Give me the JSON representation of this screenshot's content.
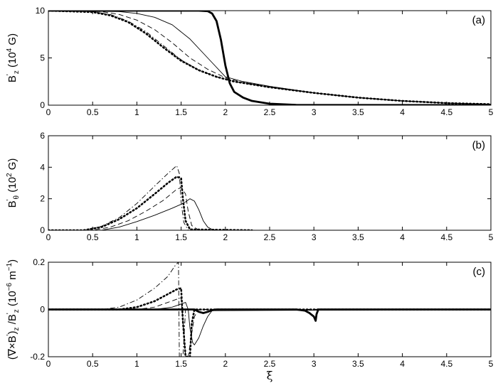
{
  "chart_data": [
    {
      "type": "line",
      "panel": "(a)",
      "ylabel_parts": [
        "B",
        "'",
        "z",
        " (10",
        "4",
        " G)"
      ],
      "xlim": [
        0,
        5
      ],
      "ylim": [
        0,
        10
      ],
      "xticks": [
        "0",
        "0.5",
        "1",
        "1.5",
        "2",
        "2.5",
        "3",
        "3.5",
        "4",
        "4.5",
        "5"
      ],
      "yticks": [
        "0",
        "5",
        "10"
      ],
      "grid": false,
      "series": [
        {
          "style": "thick-solid",
          "x": [
            0,
            1.5,
            1.7,
            1.8,
            1.85,
            1.9,
            1.95,
            2.0,
            2.05,
            2.1,
            2.2,
            2.3,
            2.5,
            2.8,
            5
          ],
          "y": [
            10,
            10,
            10,
            9.95,
            9.7,
            8.9,
            6.9,
            4.2,
            2.3,
            1.4,
            0.8,
            0.45,
            0.15,
            0.03,
            0
          ]
        },
        {
          "style": "thin-solid",
          "x": [
            0,
            0.8,
            1.0,
            1.2,
            1.4,
            1.6,
            1.8,
            2.0,
            2.2,
            2.5,
            3,
            3.5,
            4,
            4.5,
            5
          ],
          "y": [
            10,
            9.9,
            9.7,
            9.3,
            8.5,
            7.0,
            5.0,
            3.0,
            2.5,
            2.0,
            1.3,
            0.8,
            0.45,
            0.22,
            0.1
          ]
        },
        {
          "style": "dashed",
          "x": [
            0,
            0.6,
            0.8,
            1.0,
            1.2,
            1.4,
            1.6,
            1.8,
            2.0,
            2.2,
            2.5,
            3,
            3.5,
            4,
            4.5,
            5
          ],
          "y": [
            10,
            9.9,
            9.6,
            9.0,
            8.0,
            6.6,
            5.0,
            3.8,
            2.9,
            2.4,
            1.9,
            1.3,
            0.8,
            0.45,
            0.22,
            0.1
          ]
        },
        {
          "style": "dash-dot",
          "x": [
            0,
            0.5,
            0.7,
            0.9,
            1.1,
            1.3,
            1.5,
            1.7,
            1.9,
            2.1,
            2.5,
            3,
            3.5,
            4,
            4.5,
            5
          ],
          "y": [
            10,
            9.9,
            9.6,
            8.9,
            7.8,
            6.3,
            4.8,
            3.7,
            3.0,
            2.5,
            1.9,
            1.3,
            0.8,
            0.45,
            0.22,
            0.1
          ]
        },
        {
          "style": "dotted",
          "x": [
            0,
            0.5,
            0.7,
            0.9,
            1.1,
            1.3,
            1.5,
            1.7,
            1.9,
            2.1,
            2.5,
            3,
            3.5,
            4,
            4.5,
            5
          ],
          "y": [
            10,
            9.85,
            9.5,
            8.8,
            7.6,
            6.1,
            4.7,
            3.7,
            3.0,
            2.5,
            1.9,
            1.3,
            0.8,
            0.45,
            0.22,
            0.1
          ]
        }
      ]
    },
    {
      "type": "line",
      "panel": "(b)",
      "ylabel_parts": [
        "B",
        "'",
        "θ",
        " (10",
        "2",
        " G)"
      ],
      "xlim": [
        0,
        5
      ],
      "ylim": [
        0,
        6
      ],
      "xticks": [
        "0",
        "0.5",
        "1",
        "1.5",
        "2",
        "2.5",
        "3",
        "3.5",
        "4",
        "4.5",
        "5"
      ],
      "yticks": [
        "0",
        "2",
        "4",
        "6"
      ],
      "grid": false,
      "series": [
        {
          "style": "thin-solid",
          "x": [
            0,
            0.6,
            0.8,
            1.0,
            1.2,
            1.4,
            1.5,
            1.55,
            1.6,
            1.65,
            1.7,
            1.75,
            1.8,
            1.85,
            1.9,
            5
          ],
          "y": [
            0,
            0,
            0.2,
            0.55,
            0.95,
            1.4,
            1.65,
            1.8,
            2.0,
            1.85,
            1.3,
            0.6,
            0.2,
            0.05,
            0,
            0
          ]
        },
        {
          "style": "dashed",
          "x": [
            0,
            0.5,
            0.7,
            0.9,
            1.1,
            1.3,
            1.45,
            1.5,
            1.55,
            1.58,
            1.62,
            1.7,
            5
          ],
          "y": [
            0,
            0,
            0.2,
            0.6,
            1.2,
            1.9,
            2.6,
            2.7,
            2.3,
            1.2,
            0.3,
            0,
            0
          ]
        },
        {
          "style": "dotted",
          "x": [
            0,
            0.4,
            0.6,
            0.8,
            1.0,
            1.2,
            1.35,
            1.45,
            1.5,
            1.52,
            1.55,
            1.6,
            2.3
          ],
          "y": [
            0,
            0,
            0.2,
            0.7,
            1.4,
            2.3,
            3.0,
            3.4,
            3.3,
            2.0,
            0.6,
            0.05,
            0
          ]
        },
        {
          "style": "dash-dot",
          "x": [
            0,
            0.4,
            0.6,
            0.8,
            1.0,
            1.2,
            1.35,
            1.45,
            1.48,
            1.5,
            1.53,
            1.58,
            5
          ],
          "y": [
            0,
            0,
            0.25,
            0.8,
            1.7,
            2.8,
            3.6,
            4.1,
            3.6,
            1.8,
            0.5,
            0,
            0
          ]
        }
      ]
    },
    {
      "type": "line",
      "panel": "(c)",
      "ylabel_parts": [
        "(∇×B",
        "'",
        ")",
        "z",
        " /B",
        "'",
        "z",
        " (10",
        "−6",
        " m",
        "−1",
        ")"
      ],
      "xlabel": "ξ",
      "xlim": [
        0,
        5
      ],
      "ylim": [
        -0.2,
        0.2
      ],
      "xticks": [
        "0",
        "0.5",
        "1",
        "1.5",
        "2",
        "2.5",
        "3",
        "3.5",
        "4",
        "4.5",
        "5"
      ],
      "yticks": [
        "-0.2",
        "0",
        "0.2"
      ],
      "grid": false,
      "series": [
        {
          "style": "thick-solid",
          "x": [
            0,
            1.65,
            1.7,
            1.75,
            1.8,
            1.85,
            1.9,
            2.8,
            2.9,
            2.95,
            3.0,
            3.02,
            3.03,
            3.05,
            5
          ],
          "y": [
            0,
            0,
            -0.01,
            -0.015,
            -0.01,
            -0.003,
            0,
            0,
            -0.005,
            -0.015,
            -0.03,
            -0.048,
            -0.02,
            0,
            0
          ]
        },
        {
          "style": "thin-solid",
          "x": [
            0,
            1.2,
            1.4,
            1.55,
            1.58,
            1.6,
            1.63,
            1.65,
            1.7,
            1.75,
            1.8,
            1.85,
            5
          ],
          "y": [
            0,
            0,
            0.01,
            0.03,
            0.0,
            -0.08,
            -0.14,
            -0.15,
            -0.12,
            -0.07,
            -0.03,
            -0.005,
            0
          ]
        },
        {
          "style": "dashed",
          "x": [
            0,
            1.0,
            1.2,
            1.35,
            1.5,
            1.53,
            1.55,
            1.58,
            1.62,
            1.65,
            1.7,
            5
          ],
          "y": [
            0,
            0,
            0.01,
            0.03,
            0.05,
            -0.1,
            -0.2,
            -0.2,
            -0.1,
            -0.03,
            0,
            0
          ]
        },
        {
          "style": "dotted",
          "x": [
            0,
            0.8,
            1.0,
            1.2,
            1.35,
            1.45,
            1.5,
            1.52,
            1.55,
            1.6,
            1.62,
            1.65,
            5
          ],
          "y": [
            0,
            0,
            0.01,
            0.035,
            0.065,
            0.085,
            0.09,
            -0.05,
            -0.2,
            -0.2,
            -0.06,
            0,
            0
          ]
        },
        {
          "style": "dash-dot",
          "x": [
            0,
            0.6,
            0.8,
            1.0,
            1.2,
            1.35,
            1.44,
            1.47,
            1.48,
            1.52,
            1.55,
            5
          ],
          "y": [
            0,
            0,
            0.01,
            0.04,
            0.09,
            0.14,
            0.19,
            0.2,
            -0.2,
            -0.2,
            0,
            0
          ]
        }
      ]
    }
  ]
}
